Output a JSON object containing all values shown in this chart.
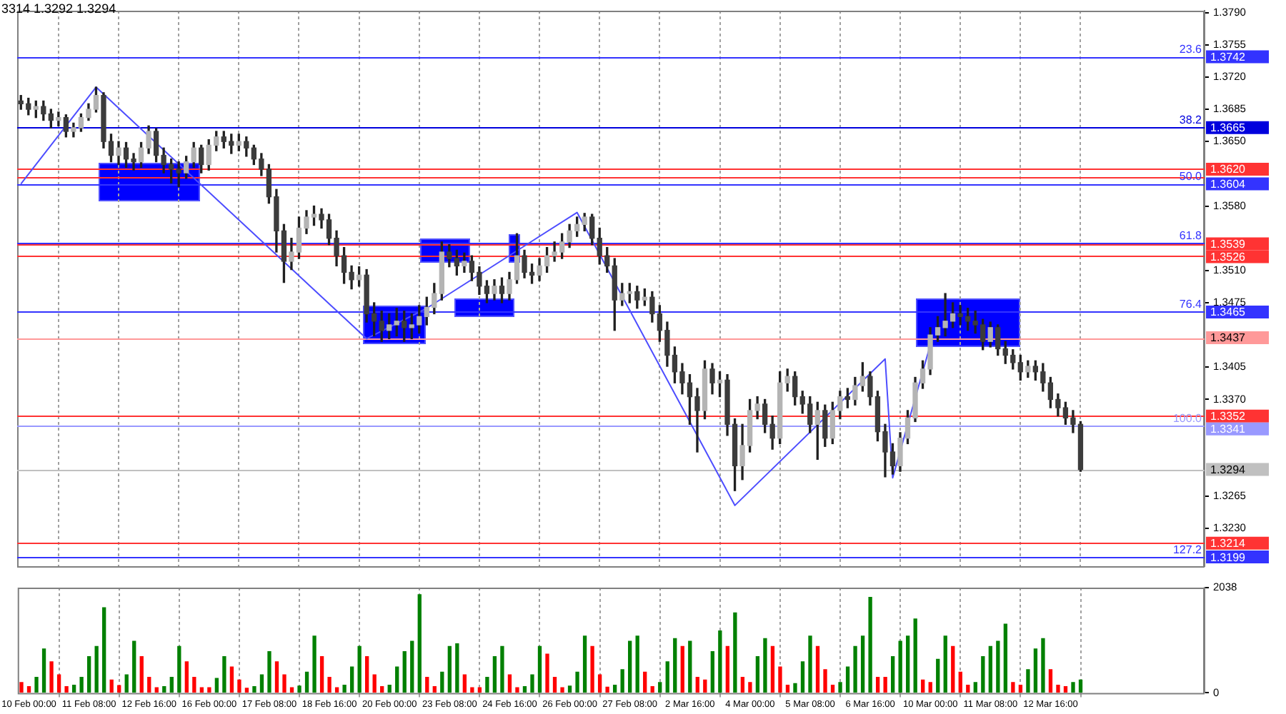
{
  "chart_data": [
    {
      "type": "candlestick",
      "annotations": [
        "3314 1.3292 1.3294",
        {
          "text": "23.6",
          "y": 1.3742
        },
        {
          "text": "38.2",
          "y": 1.3665
        },
        {
          "text": "50.0",
          "y": 1.3604
        },
        {
          "text": "61.8",
          "y": 1.354
        },
        {
          "text": "76.4",
          "y": 1.3465
        },
        {
          "text": "100.0",
          "y": 1.3341
        },
        {
          "text": "127.2",
          "y": 1.3199
        }
      ],
      "ohlc": [
        [
          1.3694,
          1.37,
          1.3685,
          1.3691
        ],
        [
          1.3691,
          1.3697,
          1.3679,
          1.3685
        ],
        [
          1.3685,
          1.3694,
          1.3676,
          1.3688
        ],
        [
          1.3688,
          1.3694,
          1.3673,
          1.368
        ],
        [
          1.368,
          1.3685,
          1.3665,
          1.3673
        ],
        [
          1.3673,
          1.3682,
          1.3667,
          1.3676
        ],
        [
          1.3676,
          1.3679,
          1.3655,
          1.3661
        ],
        [
          1.3661,
          1.367,
          1.3655,
          1.3665
        ],
        [
          1.3665,
          1.368,
          1.3661,
          1.3676
        ],
        [
          1.3676,
          1.3691,
          1.3673,
          1.3685
        ],
        [
          1.3685,
          1.3709,
          1.3682,
          1.37
        ],
        [
          1.37,
          1.3703,
          1.3643,
          1.365
        ],
        [
          1.365,
          1.3658,
          1.3628,
          1.3635
        ],
        [
          1.3635,
          1.365,
          1.3625,
          1.3643
        ],
        [
          1.3643,
          1.3649,
          1.3622,
          1.3631
        ],
        [
          1.3631,
          1.3637,
          1.3619,
          1.3628
        ],
        [
          1.3628,
          1.3649,
          1.3622,
          1.3643
        ],
        [
          1.3643,
          1.3667,
          1.3637,
          1.3661
        ],
        [
          1.3661,
          1.3664,
          1.3628,
          1.3635
        ],
        [
          1.3635,
          1.3643,
          1.3616,
          1.3625
        ],
        [
          1.3625,
          1.3631,
          1.3605,
          1.362
        ],
        [
          1.362,
          1.3628,
          1.3601,
          1.3616
        ],
        [
          1.3616,
          1.3634,
          1.361,
          1.3628
        ],
        [
          1.3628,
          1.3649,
          1.3622,
          1.3643
        ],
        [
          1.3643,
          1.3646,
          1.3616,
          1.3625
        ],
        [
          1.3625,
          1.3652,
          1.3619,
          1.3646
        ],
        [
          1.3646,
          1.3661,
          1.364,
          1.3655
        ],
        [
          1.3655,
          1.3661,
          1.3643,
          1.365
        ],
        [
          1.365,
          1.3658,
          1.3637,
          1.3646
        ],
        [
          1.3646,
          1.3658,
          1.364,
          1.365
        ],
        [
          1.365,
          1.3655,
          1.3634,
          1.3643
        ],
        [
          1.3643,
          1.3646,
          1.3625,
          1.3631
        ],
        [
          1.3631,
          1.3637,
          1.3613,
          1.362
        ],
        [
          1.362,
          1.3625,
          1.3583,
          1.359
        ],
        [
          1.359,
          1.3598,
          1.353,
          1.3553
        ],
        [
          1.3553,
          1.356,
          1.3497,
          1.352
        ],
        [
          1.352,
          1.3545,
          1.3511,
          1.353
        ],
        [
          1.353,
          1.3568,
          1.3523,
          1.3556
        ],
        [
          1.3556,
          1.3575,
          1.355,
          1.3568
        ],
        [
          1.3568,
          1.358,
          1.3559,
          1.3571
        ],
        [
          1.3571,
          1.3577,
          1.3556,
          1.3565
        ],
        [
          1.3565,
          1.3571,
          1.3538,
          1.3545
        ],
        [
          1.3545,
          1.3553,
          1.3515,
          1.3526
        ],
        [
          1.3526,
          1.3535,
          1.3496,
          1.3508
        ],
        [
          1.3508,
          1.3515,
          1.349,
          1.35
        ],
        [
          1.35,
          1.3514,
          1.3493,
          1.3505
        ],
        [
          1.3505,
          1.3511,
          1.3454,
          1.3463
        ],
        [
          1.3463,
          1.3475,
          1.3439,
          1.3455
        ],
        [
          1.3455,
          1.3466,
          1.3433,
          1.3445
        ],
        [
          1.3445,
          1.3463,
          1.3436,
          1.3451
        ],
        [
          1.3451,
          1.3469,
          1.3439,
          1.3455
        ],
        [
          1.3455,
          1.3466,
          1.3433,
          1.3448
        ],
        [
          1.3448,
          1.3463,
          1.3436,
          1.3451
        ],
        [
          1.3451,
          1.3472,
          1.3442,
          1.346
        ],
        [
          1.346,
          1.3481,
          1.3451,
          1.347
        ],
        [
          1.347,
          1.3496,
          1.3463,
          1.3485
        ],
        [
          1.3485,
          1.3541,
          1.3478,
          1.353
        ],
        [
          1.353,
          1.3538,
          1.3514,
          1.3523
        ],
        [
          1.3523,
          1.3532,
          1.3505,
          1.3515
        ],
        [
          1.3515,
          1.3529,
          1.3508,
          1.352
        ],
        [
          1.352,
          1.3526,
          1.3499,
          1.3508
        ],
        [
          1.3508,
          1.3514,
          1.3484,
          1.3493
        ],
        [
          1.3493,
          1.3499,
          1.3475,
          1.3485
        ],
        [
          1.3485,
          1.35,
          1.3478,
          1.3493
        ],
        [
          1.3493,
          1.3502,
          1.3475,
          1.3485
        ],
        [
          1.3485,
          1.3508,
          1.3478,
          1.35
        ],
        [
          1.35,
          1.355,
          1.3496,
          1.3526
        ],
        [
          1.3526,
          1.3532,
          1.3502,
          1.3508
        ],
        [
          1.3508,
          1.3517,
          1.3496,
          1.3505
        ],
        [
          1.3505,
          1.3523,
          1.3499,
          1.3515
        ],
        [
          1.3515,
          1.3535,
          1.3508,
          1.3526
        ],
        [
          1.3526,
          1.3541,
          1.352,
          1.353
        ],
        [
          1.353,
          1.355,
          1.3523,
          1.3541
        ],
        [
          1.3541,
          1.356,
          1.3535,
          1.3553
        ],
        [
          1.3553,
          1.3568,
          1.3547,
          1.356
        ],
        [
          1.356,
          1.3572,
          1.3553,
          1.3568
        ],
        [
          1.3568,
          1.3571,
          1.3538,
          1.3545
        ],
        [
          1.3545,
          1.3556,
          1.3517,
          1.3526
        ],
        [
          1.3526,
          1.3535,
          1.3508,
          1.3515
        ],
        [
          1.3515,
          1.3523,
          1.3445,
          1.3478
        ],
        [
          1.3478,
          1.3496,
          1.3472,
          1.3485
        ],
        [
          1.3485,
          1.3496,
          1.3475,
          1.3487
        ],
        [
          1.3487,
          1.3493,
          1.3469,
          1.3478
        ],
        [
          1.3478,
          1.349,
          1.3472,
          1.3481
        ],
        [
          1.3481,
          1.3487,
          1.3454,
          1.3463
        ],
        [
          1.3463,
          1.3472,
          1.3433,
          1.3445
        ],
        [
          1.3445,
          1.3454,
          1.3406,
          1.3418
        ],
        [
          1.3418,
          1.3427,
          1.3388,
          1.34
        ],
        [
          1.34,
          1.3409,
          1.3376,
          1.3388
        ],
        [
          1.3388,
          1.3397,
          1.3343,
          1.3373
        ],
        [
          1.3373,
          1.3382,
          1.3313,
          1.3358
        ],
        [
          1.3358,
          1.3412,
          1.3349,
          1.3403
        ],
        [
          1.3403,
          1.3409,
          1.3376,
          1.3388
        ],
        [
          1.3388,
          1.34,
          1.3373,
          1.3391
        ],
        [
          1.3391,
          1.3397,
          1.3331,
          1.3343
        ],
        [
          1.3343,
          1.3349,
          1.3271,
          1.3298
        ],
        [
          1.3298,
          1.3343,
          1.3283,
          1.332
        ],
        [
          1.332,
          1.337,
          1.3313,
          1.3358
        ],
        [
          1.3358,
          1.3373,
          1.3349,
          1.3365
        ],
        [
          1.3365,
          1.337,
          1.3334,
          1.3343
        ],
        [
          1.3343,
          1.3352,
          1.3316,
          1.3328
        ],
        [
          1.3328,
          1.34,
          1.3322,
          1.3388
        ],
        [
          1.3388,
          1.3403,
          1.3379,
          1.3395
        ],
        [
          1.3395,
          1.34,
          1.3364,
          1.3373
        ],
        [
          1.3373,
          1.3379,
          1.3355,
          1.3365
        ],
        [
          1.3365,
          1.3373,
          1.3334,
          1.3343
        ],
        [
          1.3343,
          1.3367,
          1.3305,
          1.3358
        ],
        [
          1.3358,
          1.3364,
          1.3319,
          1.3328
        ],
        [
          1.3328,
          1.3367,
          1.3322,
          1.3358
        ],
        [
          1.3358,
          1.3379,
          1.3349,
          1.3373
        ],
        [
          1.3373,
          1.3382,
          1.3361,
          1.337
        ],
        [
          1.337,
          1.3394,
          1.3364,
          1.3385
        ],
        [
          1.3385,
          1.341,
          1.3379,
          1.3395
        ],
        [
          1.3395,
          1.34,
          1.3364,
          1.3373
        ],
        [
          1.3373,
          1.3379,
          1.3325,
          1.3335
        ],
        [
          1.3335,
          1.3343,
          1.3286,
          1.3313
        ],
        [
          1.3313,
          1.3322,
          1.3289,
          1.3298
        ],
        [
          1.3298,
          1.3334,
          1.3292,
          1.3328
        ],
        [
          1.3328,
          1.3358,
          1.3322,
          1.335
        ],
        [
          1.335,
          1.3394,
          1.3346,
          1.3388
        ],
        [
          1.3388,
          1.3412,
          1.3382,
          1.3403
        ],
        [
          1.3403,
          1.3448,
          1.3397,
          1.344
        ],
        [
          1.344,
          1.346,
          1.3433,
          1.3448
        ],
        [
          1.3448,
          1.3485,
          1.3439,
          1.3455
        ],
        [
          1.3455,
          1.3475,
          1.3448,
          1.3463
        ],
        [
          1.3463,
          1.3472,
          1.3451,
          1.346
        ],
        [
          1.346,
          1.3469,
          1.3445,
          1.3455
        ],
        [
          1.3455,
          1.3466,
          1.3442,
          1.3451
        ],
        [
          1.3451,
          1.3457,
          1.3424,
          1.3433
        ],
        [
          1.3433,
          1.3454,
          1.3427,
          1.3448
        ],
        [
          1.3448,
          1.3451,
          1.3418,
          1.3425
        ],
        [
          1.3425,
          1.3433,
          1.3409,
          1.3418
        ],
        [
          1.3418,
          1.3424,
          1.3403,
          1.341
        ],
        [
          1.341,
          1.3418,
          1.3391,
          1.34
        ],
        [
          1.34,
          1.3412,
          1.3394,
          1.3406
        ],
        [
          1.3406,
          1.3412,
          1.3391,
          1.34
        ],
        [
          1.34,
          1.3409,
          1.3379,
          1.3388
        ],
        [
          1.3388,
          1.3394,
          1.3361,
          1.337
        ],
        [
          1.337,
          1.3376,
          1.3352,
          1.3361
        ],
        [
          1.3361,
          1.3367,
          1.3343,
          1.335
        ],
        [
          1.335,
          1.3358,
          1.3334,
          1.3343
        ],
        [
          1.3343,
          1.3346,
          1.3292,
          1.3294
        ],
        null,
        null,
        null,
        null,
        null,
        null,
        null,
        null,
        null,
        null,
        null,
        null,
        null,
        null,
        null,
        null
      ],
      "series": [
        {
          "type": "line",
          "color": "#4d4dff",
          "values": [
            1.3604,
            null,
            null,
            null,
            null,
            null,
            null,
            null,
            null,
            null,
            1.3709,
            null,
            null,
            null,
            null,
            null,
            null,
            null,
            null,
            null,
            null,
            null,
            null,
            null,
            null,
            null,
            null,
            null,
            null,
            null,
            null,
            null,
            null,
            null,
            null,
            null,
            null,
            null,
            null,
            null,
            null,
            null,
            null,
            null,
            null,
            null,
            1.3436,
            null,
            null,
            null,
            null,
            null,
            null,
            null,
            1.3469,
            null,
            null,
            null,
            null,
            null,
            null,
            null,
            null,
            null,
            null,
            null,
            null,
            null,
            null,
            null,
            null,
            null,
            null,
            null,
            1.3573,
            null,
            null,
            null,
            null,
            null,
            null,
            null,
            null,
            null,
            null,
            null,
            null,
            null,
            null,
            null,
            null,
            null,
            null,
            null,
            null,
            1.3255,
            null,
            null,
            null,
            null,
            null,
            null,
            null,
            null,
            null,
            null,
            null,
            null,
            null,
            null,
            null,
            null,
            null,
            null,
            null,
            1.3414,
            1.3285,
            null,
            null,
            null,
            null,
            1.3429,
            null,
            null,
            null,
            null,
            null,
            null,
            null,
            null,
            null,
            null,
            null,
            null,
            null,
            null,
            null,
            null,
            null,
            null,
            null,
            null,
            null,
            null,
            null,
            null,
            null,
            null,
            null,
            null,
            null,
            null,
            null,
            null,
            null,
            null,
            null,
            null
          ]
        }
      ],
      "marker": "none",
      "ylim": [
        1.3189,
        1.3792
      ],
      "yticks": [
        {
          "value": 1.379,
          "label": "1.3790"
        },
        1.3755,
        {
          "value": 1.372,
          "label": "1.3720"
        },
        1.3685,
        {
          "value": 1.365,
          "label": "1.3650"
        },
        {
          "value": 1.358,
          "label": "1.3580"
        },
        {
          "value": 1.351,
          "label": "1.3510"
        },
        1.3475,
        1.3405,
        {
          "value": 1.337,
          "label": "1.3370"
        },
        1.3265,
        {
          "value": 1.323,
          "label": "1.3230"
        }
      ],
      "tick_labels": "y",
      "grid": "x",
      "ref_lines": [
        {
          "axis": "y",
          "value": 1.3742,
          "label": "1.3742",
          "color": "#3333ff"
        },
        {
          "axis": "y",
          "value": 1.3665,
          "label": "1.3665",
          "color": "#0000dd"
        },
        {
          "axis": "y",
          "value": 1.362,
          "label": "1.3620",
          "color": "#ff3333"
        },
        {
          "axis": "y",
          "value": 1.3611,
          "label": null,
          "color": "#ff3333"
        },
        {
          "axis": "y",
          "value": 1.3604,
          "label": "1.3604",
          "color": "#3333ff"
        },
        {
          "axis": "y",
          "value": 1.354,
          "label": null,
          "color": "#3333ff"
        },
        {
          "axis": "y",
          "value": 1.3539,
          "label": "1.3539",
          "color": "#ff3333"
        },
        {
          "axis": "y",
          "value": 1.3526,
          "label": "1.3526",
          "color": "#ff3333"
        },
        {
          "axis": "y",
          "value": 1.3465,
          "label": "1.3465",
          "color": "#3333ff"
        },
        {
          "axis": "y",
          "value": 1.3437,
          "label": "1.3437",
          "color": "#ff9999"
        },
        {
          "axis": "y",
          "value": 1.3352,
          "label": "1.3352",
          "color": "#ff3333"
        },
        {
          "axis": "y",
          "value": 1.3341,
          "label": "1.3341",
          "color": "#9999ff"
        },
        {
          "axis": "y",
          "value": 1.3294,
          "label": "1.3294",
          "color": "#c0c0c0"
        },
        {
          "axis": "y",
          "value": 1.3214,
          "label": "1.3214",
          "color": "#ff3333"
        },
        {
          "axis": "y",
          "value": 1.3199,
          "label": "1.3199",
          "color": "#3333ff"
        }
      ]
    },
    {
      "type": "bar",
      "categories": [
        null,
        "10 Feb 00:00",
        null,
        null,
        null,
        null,
        null,
        null,
        null,
        "11 Feb 08:00",
        null,
        null,
        null,
        null,
        null,
        null,
        null,
        "12 Feb 16:00",
        null,
        null,
        null,
        null,
        null,
        null,
        null,
        "16 Feb 00:00",
        null,
        null,
        null,
        null,
        null,
        null,
        null,
        "17 Feb 08:00",
        null,
        null,
        null,
        null,
        null,
        null,
        null,
        "18 Feb 16:00",
        null,
        null,
        null,
        null,
        null,
        null,
        null,
        "20 Feb 00:00",
        null,
        null,
        null,
        null,
        null,
        null,
        null,
        "23 Feb 08:00",
        null,
        null,
        null,
        null,
        null,
        null,
        null,
        "24 Feb 16:00",
        null,
        null,
        null,
        null,
        null,
        null,
        null,
        "26 Feb 00:00",
        null,
        null,
        null,
        null,
        null,
        null,
        null,
        "27 Feb 08:00",
        null,
        null,
        null,
        null,
        null,
        null,
        null,
        "2 Mar 16:00",
        null,
        null,
        null,
        null,
        null,
        null,
        null,
        "4 Mar 00:00",
        null,
        null,
        null,
        null,
        null,
        null,
        null,
        "5 Mar 08:00",
        null,
        null,
        null,
        null,
        null,
        null,
        null,
        "6 Mar 16:00",
        null,
        null,
        null,
        null,
        null,
        null,
        null,
        "10 Mar 00:00",
        null,
        null,
        null,
        null,
        null,
        null,
        null,
        "11 Mar 08:00",
        null,
        null,
        null,
        null,
        null,
        null,
        null,
        "12 Mar 16:00",
        null,
        null,
        null,
        null,
        null,
        null,
        null,
        null,
        null,
        null,
        null,
        null,
        null,
        null,
        null,
        null,
        null,
        null,
        null,
        null
      ],
      "values": [
        200,
        120,
        300,
        850,
        600,
        350,
        120,
        150,
        300,
        700,
        900,
        1650,
        250,
        140,
        350,
        1000,
        700,
        300,
        100,
        120,
        300,
        900,
        600,
        300,
        100,
        100,
        280,
        700,
        500,
        250,
        90,
        120,
        350,
        800,
        600,
        350,
        100,
        130,
        400,
        1100,
        700,
        300,
        100,
        150,
        500,
        900,
        700,
        350,
        120,
        150,
        500,
        800,
        1000,
        1900,
        300,
        120,
        400,
        900,
        950,
        350,
        100,
        100,
        300,
        700,
        900,
        350,
        100,
        120,
        350,
        900,
        750,
        300,
        100,
        130,
        400,
        1100,
        900,
        350,
        110,
        150,
        450,
        1000,
        1100,
        400,
        120,
        200,
        600,
        1050,
        900,
        1000,
        300,
        250,
        800,
        1200,
        900,
        1550,
        300,
        200,
        700,
        1050,
        900,
        500,
        150,
        180,
        600,
        1100,
        900,
        450,
        150,
        200,
        500,
        900,
        1100,
        1850,
        300,
        300,
        700,
        1000,
        1100,
        1430,
        250,
        200,
        650,
        1100,
        900,
        400,
        150,
        200,
        700,
        900,
        1000,
        1330,
        200,
        150,
        450,
        850,
        1050,
        450,
        150,
        120,
        200,
        250,
        null,
        null,
        null,
        null,
        null,
        null,
        null,
        null,
        null,
        null,
        null,
        null,
        null,
        null,
        null,
        null
      ],
      "colors": [
        "#ff0000",
        "#ff0000",
        "#008000",
        "#008000",
        "#ff0000",
        "#ff0000",
        "#ff0000",
        "#008000",
        "#008000",
        "#008000",
        "#008000",
        "#008000",
        "#ff0000",
        "#ff0000",
        "#008000",
        "#008000",
        "#ff0000",
        "#ff0000",
        "#ff0000",
        "#008000",
        "#008000",
        "#008000",
        "#ff0000",
        "#ff0000",
        "#ff0000",
        "#ff0000",
        "#008000",
        "#008000",
        "#ff0000",
        "#ff0000",
        "#ff0000",
        "#008000",
        "#008000",
        "#008000",
        "#ff0000",
        "#ff0000",
        "#ff0000",
        "#008000",
        "#008000",
        "#008000",
        "#ff0000",
        "#ff0000",
        "#ff0000",
        "#008000",
        "#008000",
        "#008000",
        "#ff0000",
        "#ff0000",
        "#ff0000",
        "#008000",
        "#008000",
        "#008000",
        "#008000",
        "#008000",
        "#ff0000",
        "#ff0000",
        "#008000",
        "#008000",
        "#008000",
        "#ff0000",
        "#ff0000",
        "#ff0000",
        "#008000",
        "#008000",
        "#008000",
        "#ff0000",
        "#ff0000",
        "#008000",
        "#008000",
        "#008000",
        "#ff0000",
        "#ff0000",
        "#ff0000",
        "#008000",
        "#008000",
        "#008000",
        "#ff0000",
        "#ff0000",
        "#ff0000",
        "#008000",
        "#008000",
        "#008000",
        "#008000",
        "#ff0000",
        "#ff0000",
        "#008000",
        "#008000",
        "#008000",
        "#ff0000",
        "#008000",
        "#ff0000",
        "#ff0000",
        "#008000",
        "#008000",
        "#ff0000",
        "#008000",
        "#ff0000",
        "#ff0000",
        "#008000",
        "#008000",
        "#ff0000",
        "#ff0000",
        "#ff0000",
        "#008000",
        "#008000",
        "#008000",
        "#ff0000",
        "#ff0000",
        "#ff0000",
        "#008000",
        "#008000",
        "#008000",
        "#008000",
        "#008000",
        "#ff0000",
        "#ff0000",
        "#008000",
        "#008000",
        "#008000",
        "#008000",
        "#ff0000",
        "#ff0000",
        "#008000",
        "#008000",
        "#ff0000",
        "#ff0000",
        "#ff0000",
        "#008000",
        "#008000",
        "#008000",
        "#008000",
        "#008000",
        "#ff0000",
        "#ff0000",
        "#008000",
        "#008000",
        "#008000",
        "#ff0000",
        "#ff0000",
        "#ff0000",
        "#008000",
        "#008000",
        null,
        null,
        null,
        null,
        null,
        null,
        null,
        null,
        null,
        null,
        null,
        null,
        null,
        null,
        null,
        null
      ],
      "ylim": [
        0,
        2038
      ],
      "yticks": [
        0,
        2038
      ],
      "grid": "x"
    }
  ]
}
